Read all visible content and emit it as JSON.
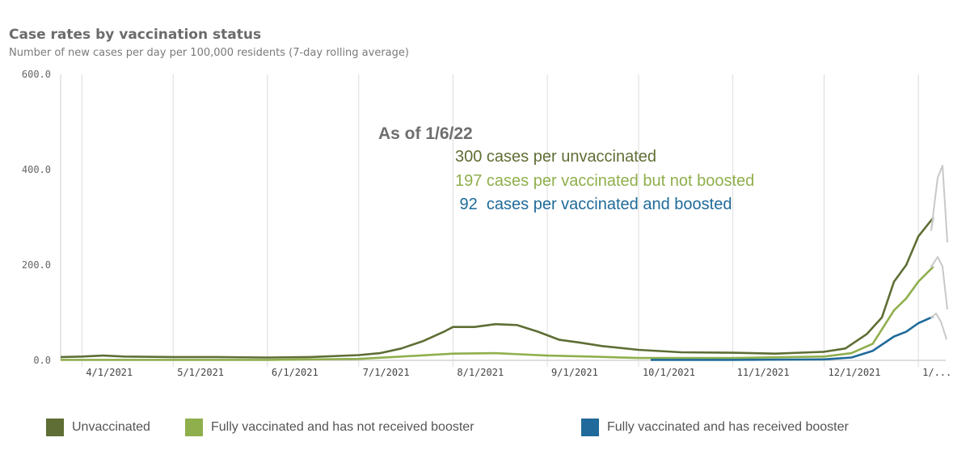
{
  "header": {
    "title": "Case rates by vaccination status",
    "subtitle": "Number of new cases per day per 100,000 residents (7-day rolling average)"
  },
  "annotation": {
    "heading": "As of 1/6/22",
    "lines": [
      {
        "text": "300  cases per unvaccinated",
        "color": "#5e6e34"
      },
      {
        "text": "197 cases per vaccinated but not boosted",
        "color": "#8faf4c"
      },
      {
        "text": " 92  cases per vaccinated and boosted",
        "color": "#1f6a9a"
      }
    ]
  },
  "colors": {
    "unvaccinated": "#5e6e34",
    "not_boosted": "#8faf4c",
    "boosted": "#1f6a9a",
    "projection": "#c8c8c8"
  },
  "chart_data": {
    "type": "line",
    "ylim": [
      0,
      600
    ],
    "yticks": [
      0,
      200,
      400,
      600
    ],
    "ytick_labels": [
      "0.0",
      "200.0",
      "400.0",
      "600.0"
    ],
    "xlim": [
      "2021-03-25",
      "2022-01-10"
    ],
    "xticks": [
      "2021-04-01",
      "2021-05-01",
      "2021-06-01",
      "2021-07-01",
      "2021-08-01",
      "2021-09-01",
      "2021-10-01",
      "2021-11-01",
      "2021-12-01",
      "2022-01-01"
    ],
    "xtick_labels": [
      "4/1/2021",
      "5/1/2021",
      "6/1/2021",
      "7/1/2021",
      "8/1/2021",
      "9/1/2021",
      "10/1/2021",
      "11/1/2021",
      "12/1/2021",
      "1/..."
    ],
    "grid": "vertical",
    "legend_position": "bottom",
    "series": [
      {
        "name": "Unvaccinated",
        "color": "#5e6e34",
        "points": [
          [
            "2021-03-25",
            7
          ],
          [
            "2021-04-01",
            8
          ],
          [
            "2021-04-08",
            10
          ],
          [
            "2021-04-15",
            8
          ],
          [
            "2021-05-01",
            7
          ],
          [
            "2021-05-15",
            7
          ],
          [
            "2021-06-01",
            6
          ],
          [
            "2021-06-15",
            7
          ],
          [
            "2021-07-01",
            11
          ],
          [
            "2021-07-08",
            15
          ],
          [
            "2021-07-15",
            25
          ],
          [
            "2021-07-22",
            40
          ],
          [
            "2021-07-29",
            60
          ],
          [
            "2021-08-01",
            70
          ],
          [
            "2021-08-08",
            70
          ],
          [
            "2021-08-15",
            76
          ],
          [
            "2021-08-22",
            74
          ],
          [
            "2021-08-29",
            60
          ],
          [
            "2021-09-05",
            43
          ],
          [
            "2021-09-12",
            37
          ],
          [
            "2021-09-19",
            30
          ],
          [
            "2021-10-01",
            22
          ],
          [
            "2021-10-15",
            17
          ],
          [
            "2021-11-01",
            16
          ],
          [
            "2021-11-15",
            14
          ],
          [
            "2021-12-01",
            18
          ],
          [
            "2021-12-08",
            25
          ],
          [
            "2021-12-15",
            55
          ],
          [
            "2021-12-20",
            90
          ],
          [
            "2021-12-24",
            165
          ],
          [
            "2021-12-28",
            200
          ],
          [
            "2022-01-01",
            260
          ],
          [
            "2022-01-06",
            300
          ]
        ]
      },
      {
        "name": "Fully vaccinated and has not received booster",
        "color": "#8faf4c",
        "points": [
          [
            "2021-03-25",
            1
          ],
          [
            "2021-05-01",
            1
          ],
          [
            "2021-06-01",
            1
          ],
          [
            "2021-07-01",
            3
          ],
          [
            "2021-07-15",
            8
          ],
          [
            "2021-08-01",
            14
          ],
          [
            "2021-08-15",
            15
          ],
          [
            "2021-09-01",
            10
          ],
          [
            "2021-09-15",
            8
          ],
          [
            "2021-10-01",
            5
          ],
          [
            "2021-11-01",
            5
          ],
          [
            "2021-12-01",
            8
          ],
          [
            "2021-12-10",
            15
          ],
          [
            "2021-12-17",
            35
          ],
          [
            "2021-12-24",
            105
          ],
          [
            "2021-12-28",
            130
          ],
          [
            "2022-01-01",
            165
          ],
          [
            "2022-01-06",
            197
          ]
        ]
      },
      {
        "name": "Fully vaccinated and has received booster",
        "color": "#1f6a9a",
        "points": [
          [
            "2021-10-05",
            1
          ],
          [
            "2021-11-01",
            1
          ],
          [
            "2021-12-01",
            2
          ],
          [
            "2021-12-10",
            6
          ],
          [
            "2021-12-17",
            20
          ],
          [
            "2021-12-24",
            50
          ],
          [
            "2021-12-28",
            60
          ],
          [
            "2022-01-01",
            78
          ],
          [
            "2022-01-06",
            92
          ]
        ]
      }
    ]
  }
}
